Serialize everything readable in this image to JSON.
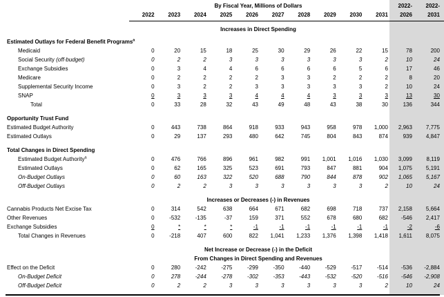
{
  "document": {
    "title": "By Fiscal Year, Millions of Dollars",
    "year_columns": [
      "2022",
      "2023",
      "2024",
      "2025",
      "2026",
      "2027",
      "2028",
      "2029",
      "2030",
      "2031"
    ],
    "total_columns": [
      {
        "line1": "2022-",
        "line2": "2026"
      },
      {
        "line1": "2022-",
        "line2": "2031"
      }
    ],
    "colors": {
      "totals_band": "#d9d9d9",
      "text": "#000000",
      "rule": "#000000"
    },
    "rows": [
      {
        "type": "center",
        "text": "Increases in Direct Spending",
        "gap": "sm"
      },
      {
        "type": "section",
        "label": "Estimated Outlays for Federal Benefit Programs",
        "sup": "a",
        "gap": "sm"
      },
      {
        "type": "data",
        "label": "Medicaid",
        "indent": 1,
        "values": [
          "0",
          "20",
          "15",
          "18",
          "25",
          "30",
          "29",
          "26",
          "22",
          "15",
          "78",
          "200"
        ]
      },
      {
        "type": "data",
        "label": "Social Security",
        "italic_suffix": " (off-budget)",
        "values_italic": true,
        "indent": 1,
        "values": [
          "0",
          "2",
          "2",
          "3",
          "3",
          "3",
          "3",
          "3",
          "3",
          "2",
          "10",
          "24"
        ]
      },
      {
        "type": "data",
        "label": "Exchange Subsidies",
        "indent": 1,
        "values": [
          "0",
          "3",
          "4",
          "4",
          "6",
          "6",
          "6",
          "6",
          "5",
          "6",
          "17",
          "46"
        ]
      },
      {
        "type": "data",
        "label": "Medicare",
        "indent": 1,
        "values": [
          "0",
          "2",
          "2",
          "2",
          "2",
          "3",
          "3",
          "2",
          "2",
          "2",
          "8",
          "20"
        ]
      },
      {
        "type": "data",
        "label": "Supplemental Security Income",
        "indent": 1,
        "values": [
          "0",
          "3",
          "2",
          "2",
          "3",
          "3",
          "3",
          "3",
          "3",
          "2",
          "10",
          "24"
        ]
      },
      {
        "type": "data",
        "label": "SNAP",
        "indent": 1,
        "underline": true,
        "values": [
          "0",
          "3",
          "3",
          "3",
          "4",
          "4",
          "4",
          "3",
          "3",
          "3",
          "13",
          "30"
        ]
      },
      {
        "type": "data",
        "label": "Total",
        "indent": 2,
        "values": [
          "0",
          "33",
          "28",
          "32",
          "43",
          "49",
          "48",
          "43",
          "38",
          "30",
          "136",
          "344"
        ]
      },
      {
        "type": "section",
        "label": "Opportunity Trust Fund",
        "gap": "lg"
      },
      {
        "type": "data",
        "label": "Estimated Budget Authority",
        "indent": 0,
        "values": [
          "0",
          "443",
          "738",
          "864",
          "918",
          "933",
          "943",
          "958",
          "978",
          "1,000",
          "2,963",
          "7,775"
        ]
      },
      {
        "type": "data",
        "label": "Estimated Outlays",
        "indent": 0,
        "values": [
          "0",
          "29",
          "137",
          "293",
          "480",
          "642",
          "745",
          "804",
          "843",
          "874",
          "939",
          "4,847"
        ]
      },
      {
        "type": "section",
        "label": "Total Changes in Direct Spending",
        "gap": "lg"
      },
      {
        "type": "data",
        "label": "Estimated Budget Authority",
        "sup": "a",
        "indent": 1,
        "values": [
          "0",
          "476",
          "766",
          "896",
          "961",
          "982",
          "991",
          "1,001",
          "1,016",
          "1,030",
          "3,099",
          "8,119"
        ]
      },
      {
        "type": "data",
        "label": "Estimated Outlays",
        "indent": 1,
        "values": [
          "0",
          "62",
          "165",
          "325",
          "523",
          "691",
          "793",
          "847",
          "881",
          "904",
          "1,075",
          "5,191"
        ]
      },
      {
        "type": "data",
        "label": "On-Budget Outlays",
        "italic": true,
        "indent": 1,
        "values": [
          "0",
          "60",
          "163",
          "322",
          "520",
          "688",
          "790",
          "844",
          "878",
          "902",
          "1,065",
          "5,167"
        ]
      },
      {
        "type": "data",
        "label": "Off-Budget Outlays",
        "italic": true,
        "indent": 1,
        "values": [
          "0",
          "2",
          "2",
          "3",
          "3",
          "3",
          "3",
          "3",
          "3",
          "2",
          "10",
          "24"
        ]
      },
      {
        "type": "center",
        "text": "Increases or Decreases (-) in Revenues",
        "gap": "lg"
      },
      {
        "type": "data",
        "label": "Cannabis Products Net Excise Tax",
        "indent": 0,
        "values": [
          "0",
          "314",
          "542",
          "638",
          "664",
          "671",
          "682",
          "698",
          "718",
          "737",
          "2,158",
          "5,664"
        ]
      },
      {
        "type": "data",
        "label": "Other Revenues",
        "indent": 0,
        "values": [
          "0",
          "-532",
          "-135",
          "-37",
          "159",
          "371",
          "552",
          "678",
          "680",
          "682",
          "-546",
          "2,417"
        ]
      },
      {
        "type": "data",
        "label": "Exchange Subsidies",
        "indent": 0,
        "underline": true,
        "values": [
          "0",
          "*",
          "*",
          "*",
          "-1",
          "-1",
          "-1",
          "-1",
          "-1",
          "-1",
          "-2",
          "-6"
        ]
      },
      {
        "type": "data",
        "label": "Total Changes in Revenues",
        "indent": 1,
        "values": [
          "0",
          "-218",
          "407",
          "600",
          "822",
          "1,041",
          "1,233",
          "1,376",
          "1,398",
          "1,418",
          "1,611",
          "8,075"
        ]
      },
      {
        "type": "center",
        "text": "Net Increase or Decrease (-) in the Deficit",
        "gap": "lg"
      },
      {
        "type": "center",
        "text": "From Changes in Direct Spending and Revenues"
      },
      {
        "type": "data",
        "label": "Effect on the Deficit",
        "indent": 0,
        "values": [
          "0",
          "280",
          "-242",
          "-275",
          "-299",
          "-350",
          "-440",
          "-529",
          "-517",
          "-514",
          "-536",
          "-2,884"
        ]
      },
      {
        "type": "data",
        "label": "On-Budget Deficit",
        "italic": true,
        "indent": 1,
        "values": [
          "0",
          "278",
          "-244",
          "-278",
          "-302",
          "-353",
          "-443",
          "-532",
          "-520",
          "-516",
          "-546",
          "-2,908"
        ]
      },
      {
        "type": "data",
        "label": "Off-Budget Deficit",
        "italic": true,
        "indent": 1,
        "values": [
          "0",
          "2",
          "2",
          "3",
          "3",
          "3",
          "3",
          "3",
          "3",
          "2",
          "10",
          "24"
        ]
      }
    ]
  }
}
